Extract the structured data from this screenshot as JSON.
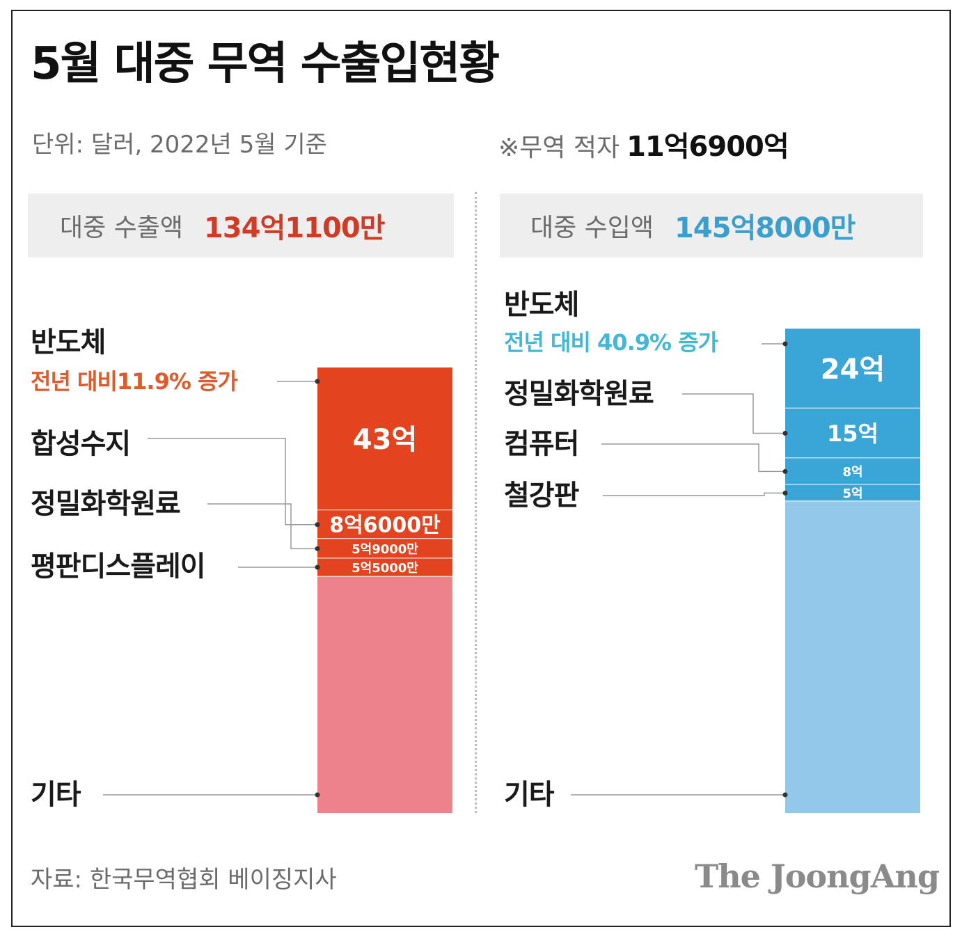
{
  "title": "5월 대중 무역 수출입현황",
  "unit_note": "단위: 달러, 2022년 5월 기준",
  "deficit": {
    "label": "※무역 적자",
    "value": "11억6900억"
  },
  "source": "자료: 한국무역협회 베이징지사",
  "logo": "The JoongAng",
  "export_box": {
    "label": "대중 수출액",
    "value": "134억1100만"
  },
  "import_box": {
    "label": "대중 수입액",
    "value": "145억8000만"
  },
  "export_growth": "전년 대비11.9% 증가",
  "import_growth": "전년 대비 40.9% 증가",
  "colors": {
    "export_accent": "#cf3b25",
    "export_main": "#e3431f",
    "export_other": "#ee828b",
    "import_accent": "#3a9fcc",
    "import_main": "#3aa6d8",
    "import_other": "#94c8ea",
    "leader_line": "#999999"
  },
  "chart_data": [
    {
      "type": "bar",
      "stacked": true,
      "name": "대중 수출액",
      "total_label": "134억1100만",
      "total": 134.11,
      "unit": "억 달러",
      "segments": [
        {
          "category": "반도체",
          "value": 43,
          "label": "43억"
        },
        {
          "category": "합성수지",
          "value": 8.6,
          "label": "8억6000만"
        },
        {
          "category": "정밀화학원료",
          "value": 5.9,
          "label": "5억9000만"
        },
        {
          "category": "평판디스플레이",
          "value": 5.5,
          "label": "5억5000만"
        },
        {
          "category": "기타",
          "value": 71.11,
          "label": ""
        }
      ]
    },
    {
      "type": "bar",
      "stacked": true,
      "name": "대중 수입액",
      "total_label": "145억8000만",
      "total": 145.8,
      "unit": "억 달러",
      "segments": [
        {
          "category": "반도체",
          "value": 24,
          "label": "24억"
        },
        {
          "category": "정밀화학원료",
          "value": 15,
          "label": "15억"
        },
        {
          "category": "컴퓨터",
          "value": 8,
          "label": "8억"
        },
        {
          "category": "철강판",
          "value": 5,
          "label": "5억"
        },
        {
          "category": "기타",
          "value": 93.8,
          "label": ""
        }
      ]
    }
  ]
}
